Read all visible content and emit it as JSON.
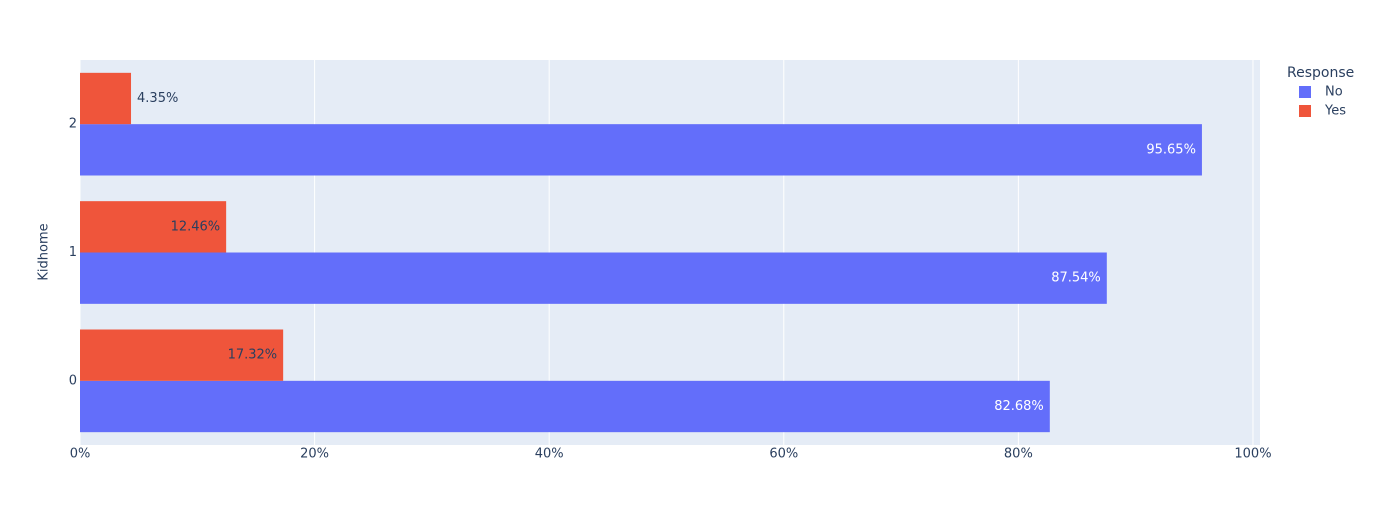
{
  "chart_data": {
    "type": "hbar",
    "y_label": "Kidhome",
    "legend_title": "Response",
    "categories": [
      "0",
      "1",
      "2"
    ],
    "series": [
      {
        "name": "No",
        "color": "#636efa",
        "label_color": "#ffffff",
        "values": [
          82.68,
          87.54,
          95.65
        ],
        "value_labels": [
          "82.68%",
          "87.54%",
          "95.65%"
        ]
      },
      {
        "name": "Yes",
        "color": "#ef553b",
        "label_color": "#2a3f5f",
        "values": [
          17.32,
          12.46,
          4.35
        ],
        "value_labels": [
          "17.32%",
          "12.46%",
          "4.35%"
        ]
      }
    ],
    "xlim": [
      0,
      100.6
    ],
    "xticks": [
      {
        "value": 0,
        "label": "0%"
      },
      {
        "value": 20,
        "label": "20%"
      },
      {
        "value": 40,
        "label": "40%"
      },
      {
        "value": 60,
        "label": "60%"
      },
      {
        "value": 80,
        "label": "80%"
      },
      {
        "value": 100,
        "label": "100%"
      }
    ],
    "grid": true,
    "legend": "right"
  }
}
